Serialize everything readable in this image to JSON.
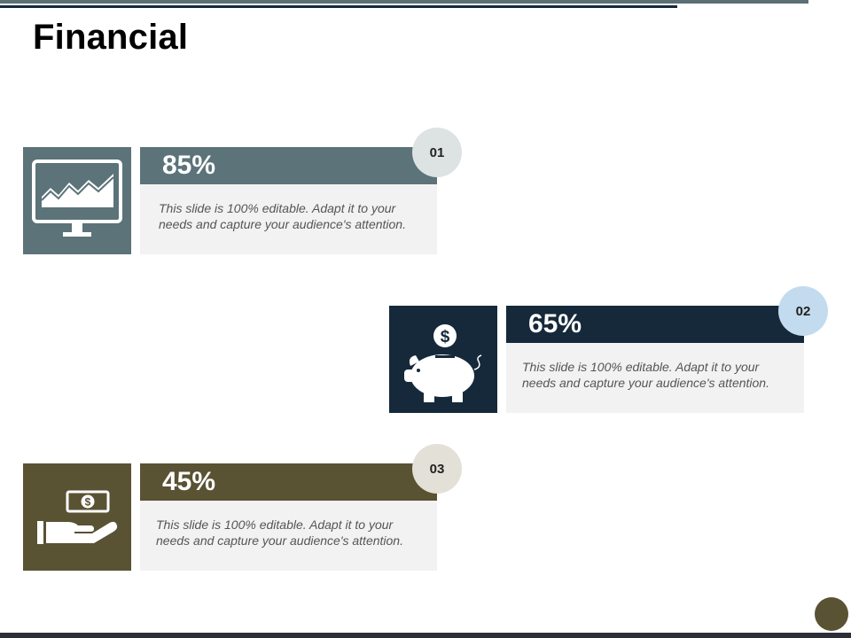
{
  "title": "Financial",
  "colors": {
    "slate": "#5b7379",
    "navy": "#15293a",
    "olive": "#595233",
    "panel": "#f2f2f2"
  },
  "items": [
    {
      "number": "01",
      "percent": "85%",
      "description": "This slide is 100% editable. Adapt it to your needs and capture your audience's attention.",
      "icon": "monitor-chart-icon",
      "color": "#5b7379",
      "circle_color": "#dde2e3"
    },
    {
      "number": "02",
      "percent": "65%",
      "description": "This slide is 100% editable. Adapt it to your needs and capture your audience's attention.",
      "icon": "piggy-bank-icon",
      "color": "#15293a",
      "circle_color": "#c3dbee"
    },
    {
      "number": "03",
      "percent": "45%",
      "description": "This slide is 100% editable. Adapt it to your needs and capture your audience's attention.",
      "icon": "hand-money-icon",
      "color": "#595233",
      "circle_color": "#e2e0d7"
    }
  ]
}
